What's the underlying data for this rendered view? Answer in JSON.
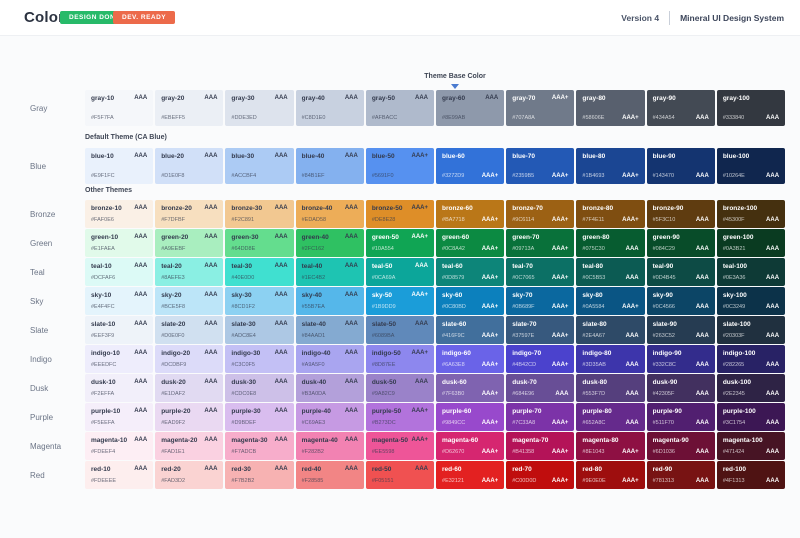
{
  "header": {
    "title": "Color",
    "badges": [
      {
        "label": "DESIGN DONE",
        "color": "#27ba69"
      },
      {
        "label": "DEV. READY",
        "color": "#ec6a4a"
      }
    ],
    "version": "Version 4",
    "product": "Mineral UI Design System"
  },
  "annotations": {
    "theme_base_color": "Theme Base Color",
    "default_theme": "Default Theme (CA Blue)",
    "other_themes": "Other Themes"
  },
  "accent_color": "#3272D9",
  "palette": {
    "rows": [
      {
        "label": "Gray",
        "light_from": 6,
        "swatches": [
          {
            "name": "gray-10",
            "hex": "#F5F7FA",
            "rating": "AAA",
            "rating_pos": "top"
          },
          {
            "name": "gray-20",
            "hex": "#EBEFF5",
            "rating": "AAA",
            "rating_pos": "top"
          },
          {
            "name": "gray-30",
            "hex": "#DDE3ED",
            "rating": "AAA",
            "rating_pos": "top"
          },
          {
            "name": "gray-40",
            "hex": "#C8D1E0",
            "rating": "AAA",
            "rating_pos": "top"
          },
          {
            "name": "gray-50",
            "hex": "#AFBACC",
            "rating": "AAA",
            "rating_pos": "top"
          },
          {
            "name": "gray-60",
            "hex": "#8E99AB",
            "rating": "AAA",
            "rating_pos": "top"
          },
          {
            "name": "gray-70",
            "hex": "#707A8A",
            "rating": "AAA+",
            "rating_pos": "top"
          },
          {
            "name": "gray-80",
            "hex": "#58606E",
            "rating": "AAA+",
            "rating_pos": "bottom"
          },
          {
            "name": "gray-90",
            "hex": "#434A54",
            "rating": "AAA",
            "rating_pos": "bottom"
          },
          {
            "name": "gray-100",
            "hex": "#333840",
            "rating": "AAA",
            "rating_pos": "bottom"
          }
        ]
      },
      {
        "label": "Blue",
        "light_from": 5,
        "swatches": [
          {
            "name": "blue-10",
            "hex": "#E9F1FC",
            "rating": "AAA",
            "rating_pos": "top"
          },
          {
            "name": "blue-20",
            "hex": "#D1E0F8",
            "rating": "AAA",
            "rating_pos": "top"
          },
          {
            "name": "blue-30",
            "hex": "#ACCBF4",
            "rating": "AAA",
            "rating_pos": "top"
          },
          {
            "name": "blue-40",
            "hex": "#84B1EF",
            "rating": "AAA",
            "rating_pos": "top"
          },
          {
            "name": "blue-50",
            "hex": "#5691F0",
            "rating": "AAA+",
            "rating_pos": "top"
          },
          {
            "name": "blue-60",
            "hex": "#3272D9",
            "rating": "AAA+",
            "rating_pos": "bottom"
          },
          {
            "name": "blue-70",
            "hex": "#2359B5",
            "rating": "AAA+",
            "rating_pos": "bottom"
          },
          {
            "name": "blue-80",
            "hex": "#1B4693",
            "rating": "AAA+",
            "rating_pos": "bottom"
          },
          {
            "name": "blue-90",
            "hex": "#143470",
            "rating": "AAA",
            "rating_pos": "bottom"
          },
          {
            "name": "blue-100",
            "hex": "#10264E",
            "rating": "AAA",
            "rating_pos": "bottom"
          }
        ]
      },
      {
        "label": "Bronze",
        "light_from": 5,
        "swatches": [
          {
            "name": "bronze-10",
            "hex": "#FAF0E6",
            "rating": "AAA",
            "rating_pos": "top"
          },
          {
            "name": "bronze-20",
            "hex": "#F7DFBF",
            "rating": "AAA",
            "rating_pos": "top"
          },
          {
            "name": "bronze-30",
            "hex": "#F2C891",
            "rating": "AAA",
            "rating_pos": "top"
          },
          {
            "name": "bronze-40",
            "hex": "#EDAD58",
            "rating": "AAA",
            "rating_pos": "top"
          },
          {
            "name": "bronze-50",
            "hex": "#DE8E28",
            "rating": "AAA+",
            "rating_pos": "top"
          },
          {
            "name": "bronze-60",
            "hex": "#BA7718",
            "rating": "AAA+",
            "rating_pos": "bottom"
          },
          {
            "name": "bronze-70",
            "hex": "#9C6114",
            "rating": "AAA+",
            "rating_pos": "bottom"
          },
          {
            "name": "bronze-80",
            "hex": "#7F4E11",
            "rating": "AAA+",
            "rating_pos": "bottom"
          },
          {
            "name": "bronze-90",
            "hex": "#5F3C10",
            "rating": "AAA",
            "rating_pos": "bottom"
          },
          {
            "name": "bronze-100",
            "hex": "#45300F",
            "rating": "AAA",
            "rating_pos": "bottom"
          }
        ]
      },
      {
        "label": "Green",
        "light_from": 4,
        "swatches": [
          {
            "name": "green-10",
            "hex": "#E1FAEA",
            "rating": "AAA",
            "rating_pos": "top"
          },
          {
            "name": "green-20",
            "hex": "#A9EEBF",
            "rating": "AAA",
            "rating_pos": "top"
          },
          {
            "name": "green-30",
            "hex": "#64DD8E",
            "rating": "AAA",
            "rating_pos": "top"
          },
          {
            "name": "green-40",
            "hex": "#2FC162",
            "rating": "AAA",
            "rating_pos": "top"
          },
          {
            "name": "green-50",
            "hex": "#10A554",
            "rating": "AAA+",
            "rating_pos": "top"
          },
          {
            "name": "green-60",
            "hex": "#0C8A42",
            "rating": "AAA+",
            "rating_pos": "bottom"
          },
          {
            "name": "green-70",
            "hex": "#09713A",
            "rating": "AAA+",
            "rating_pos": "bottom"
          },
          {
            "name": "green-80",
            "hex": "#075C30",
            "rating": "AAA",
            "rating_pos": "bottom"
          },
          {
            "name": "green-90",
            "hex": "#084C29",
            "rating": "AAA",
            "rating_pos": "bottom"
          },
          {
            "name": "green-100",
            "hex": "#0A3B21",
            "rating": "AAA",
            "rating_pos": "bottom"
          }
        ]
      },
      {
        "label": "Teal",
        "light_from": 4,
        "swatches": [
          {
            "name": "teal-10",
            "hex": "#DCFAF6",
            "rating": "AAA",
            "rating_pos": "top"
          },
          {
            "name": "teal-20",
            "hex": "#8AEFE3",
            "rating": "AAA",
            "rating_pos": "top"
          },
          {
            "name": "teal-30",
            "hex": "#40E0D0",
            "rating": "AAA",
            "rating_pos": "top"
          },
          {
            "name": "teal-40",
            "hex": "#1EC4B2",
            "rating": "AAA",
            "rating_pos": "top"
          },
          {
            "name": "teal-50",
            "hex": "#0CA69A",
            "rating": "AAA",
            "rating_pos": "top"
          },
          {
            "name": "teal-60",
            "hex": "#0D8579",
            "rating": "AAA+",
            "rating_pos": "bottom"
          },
          {
            "name": "teal-70",
            "hex": "#0C7065",
            "rating": "AAA+",
            "rating_pos": "bottom"
          },
          {
            "name": "teal-80",
            "hex": "#0C5B53",
            "rating": "AAA",
            "rating_pos": "bottom"
          },
          {
            "name": "teal-90",
            "hex": "#0D4B45",
            "rating": "AAA",
            "rating_pos": "bottom"
          },
          {
            "name": "teal-100",
            "hex": "#0E3A36",
            "rating": "AAA",
            "rating_pos": "bottom"
          }
        ]
      },
      {
        "label": "Sky",
        "light_from": 4,
        "swatches": [
          {
            "name": "sky-10",
            "hex": "#E4F4FC",
            "rating": "AAA",
            "rating_pos": "top"
          },
          {
            "name": "sky-20",
            "hex": "#BCE5F8",
            "rating": "AAA",
            "rating_pos": "top"
          },
          {
            "name": "sky-30",
            "hex": "#8CD1F2",
            "rating": "AAA",
            "rating_pos": "top"
          },
          {
            "name": "sky-40",
            "hex": "#55B7EA",
            "rating": "AAA",
            "rating_pos": "top"
          },
          {
            "name": "sky-50",
            "hex": "#1B9DD9",
            "rating": "AAA+",
            "rating_pos": "top"
          },
          {
            "name": "sky-60",
            "hex": "#0C80BD",
            "rating": "AAA+",
            "rating_pos": "bottom"
          },
          {
            "name": "sky-70",
            "hex": "#0B689F",
            "rating": "AAA+",
            "rating_pos": "bottom"
          },
          {
            "name": "sky-80",
            "hex": "#0A5584",
            "rating": "AAA+",
            "rating_pos": "bottom"
          },
          {
            "name": "sky-90",
            "hex": "#0C4566",
            "rating": "AAA",
            "rating_pos": "bottom"
          },
          {
            "name": "sky-100",
            "hex": "#0C3249",
            "rating": "AAA",
            "rating_pos": "bottom"
          }
        ]
      },
      {
        "label": "Slate",
        "light_from": 5,
        "swatches": [
          {
            "name": "slate-10",
            "hex": "#EEF3F9",
            "rating": "AAA",
            "rating_pos": "top"
          },
          {
            "name": "slate-20",
            "hex": "#D0E0F0",
            "rating": "AAA",
            "rating_pos": "top"
          },
          {
            "name": "slate-30",
            "hex": "#ADC8E4",
            "rating": "AAA",
            "rating_pos": "top"
          },
          {
            "name": "slate-40",
            "hex": "#84AAD1",
            "rating": "AAA",
            "rating_pos": "top"
          },
          {
            "name": "slate-50",
            "hex": "#6089BA",
            "rating": "AAA",
            "rating_pos": "top"
          },
          {
            "name": "slate-60",
            "hex": "#416F9C",
            "rating": "AAA+",
            "rating_pos": "bottom"
          },
          {
            "name": "slate-70",
            "hex": "#37597E",
            "rating": "AAA+",
            "rating_pos": "bottom"
          },
          {
            "name": "slate-80",
            "hex": "#2E4A67",
            "rating": "AAA",
            "rating_pos": "bottom"
          },
          {
            "name": "slate-90",
            "hex": "#263C52",
            "rating": "AAA",
            "rating_pos": "bottom"
          },
          {
            "name": "slate-100",
            "hex": "#20303F",
            "rating": "AAA",
            "rating_pos": "bottom"
          }
        ]
      },
      {
        "label": "Indigo",
        "light_from": 5,
        "swatches": [
          {
            "name": "indigo-10",
            "hex": "#EEEDFC",
            "rating": "AAA",
            "rating_pos": "top"
          },
          {
            "name": "indigo-20",
            "hex": "#DCDBF9",
            "rating": "AAA",
            "rating_pos": "top"
          },
          {
            "name": "indigo-30",
            "hex": "#C3C0F5",
            "rating": "AAA",
            "rating_pos": "top"
          },
          {
            "name": "indigo-40",
            "hex": "#A9A5F0",
            "rating": "AAA",
            "rating_pos": "top"
          },
          {
            "name": "indigo-50",
            "hex": "#8D87EE",
            "rating": "AAA+",
            "rating_pos": "top"
          },
          {
            "name": "indigo-60",
            "hex": "#6A63E8",
            "rating": "AAA+",
            "rating_pos": "bottom"
          },
          {
            "name": "indigo-70",
            "hex": "#4B42CD",
            "rating": "AAA+",
            "rating_pos": "bottom"
          },
          {
            "name": "indigo-80",
            "hex": "#3D35AB",
            "rating": "AAA",
            "rating_pos": "bottom"
          },
          {
            "name": "indigo-90",
            "hex": "#332C8C",
            "rating": "AAA",
            "rating_pos": "bottom"
          },
          {
            "name": "indigo-100",
            "hex": "#282265",
            "rating": "AAA",
            "rating_pos": "bottom"
          }
        ]
      },
      {
        "label": "Dusk",
        "light_from": 5,
        "swatches": [
          {
            "name": "dusk-10",
            "hex": "#F2EFFA",
            "rating": "AAA",
            "rating_pos": "top"
          },
          {
            "name": "dusk-20",
            "hex": "#E1DAF2",
            "rating": "AAA",
            "rating_pos": "top"
          },
          {
            "name": "dusk-30",
            "hex": "#CDC0E8",
            "rating": "AAA",
            "rating_pos": "top"
          },
          {
            "name": "dusk-40",
            "hex": "#B3A0DA",
            "rating": "AAA",
            "rating_pos": "top"
          },
          {
            "name": "dusk-50",
            "hex": "#9A82C9",
            "rating": "AAA",
            "rating_pos": "top"
          },
          {
            "name": "dusk-60",
            "hex": "#7F63B0",
            "rating": "AAA+",
            "rating_pos": "bottom"
          },
          {
            "name": "dusk-70",
            "hex": "#684E96",
            "rating": "AAA",
            "rating_pos": "bottom"
          },
          {
            "name": "dusk-80",
            "hex": "#553F7D",
            "rating": "AAA",
            "rating_pos": "bottom"
          },
          {
            "name": "dusk-90",
            "hex": "#42305F",
            "rating": "AAA",
            "rating_pos": "bottom"
          },
          {
            "name": "dusk-100",
            "hex": "#2E2345",
            "rating": "AAA",
            "rating_pos": "bottom"
          }
        ]
      },
      {
        "label": "Purple",
        "light_from": 5,
        "swatches": [
          {
            "name": "purple-10",
            "hex": "#F5EEFA",
            "rating": "AAA",
            "rating_pos": "top"
          },
          {
            "name": "purple-20",
            "hex": "#EAD9F2",
            "rating": "AAA",
            "rating_pos": "top"
          },
          {
            "name": "purple-30",
            "hex": "#D9BDEF",
            "rating": "AAA",
            "rating_pos": "top"
          },
          {
            "name": "purple-40",
            "hex": "#C69AE3",
            "rating": "AAA",
            "rating_pos": "top"
          },
          {
            "name": "purple-50",
            "hex": "#B273DC",
            "rating": "AAA+",
            "rating_pos": "top"
          },
          {
            "name": "purple-60",
            "hex": "#9849CC",
            "rating": "AAA+",
            "rating_pos": "bottom"
          },
          {
            "name": "purple-70",
            "hex": "#7C33A8",
            "rating": "AAA+",
            "rating_pos": "bottom"
          },
          {
            "name": "purple-80",
            "hex": "#652A8C",
            "rating": "AAA",
            "rating_pos": "bottom"
          },
          {
            "name": "purple-90",
            "hex": "#511F70",
            "rating": "AAA",
            "rating_pos": "bottom"
          },
          {
            "name": "purple-100",
            "hex": "#3C1754",
            "rating": "AAA",
            "rating_pos": "bottom"
          }
        ]
      },
      {
        "label": "Magenta",
        "light_from": 5,
        "swatches": [
          {
            "name": "magenta-10",
            "hex": "#FDEEF4",
            "rating": "AAA",
            "rating_pos": "top"
          },
          {
            "name": "magenta-20",
            "hex": "#FAD1E1",
            "rating": "AAA",
            "rating_pos": "top"
          },
          {
            "name": "magenta-30",
            "hex": "#F7ADCB",
            "rating": "AAA",
            "rating_pos": "top"
          },
          {
            "name": "magenta-40",
            "hex": "#F282B2",
            "rating": "AAA",
            "rating_pos": "top"
          },
          {
            "name": "magenta-50",
            "hex": "#EE5598",
            "rating": "AAA+",
            "rating_pos": "top"
          },
          {
            "name": "magenta-60",
            "hex": "#D62670",
            "rating": "AAA+",
            "rating_pos": "bottom"
          },
          {
            "name": "magenta-70",
            "hex": "#B41358",
            "rating": "AAA+",
            "rating_pos": "bottom"
          },
          {
            "name": "magenta-80",
            "hex": "#8E1043",
            "rating": "AAA+",
            "rating_pos": "bottom"
          },
          {
            "name": "magenta-90",
            "hex": "#6D1036",
            "rating": "AAA",
            "rating_pos": "bottom"
          },
          {
            "name": "magenta-100",
            "hex": "#471424",
            "rating": "AAA",
            "rating_pos": "bottom"
          }
        ]
      },
      {
        "label": "Red",
        "light_from": 5,
        "swatches": [
          {
            "name": "red-10",
            "hex": "#FDEEEE",
            "rating": "AAA",
            "rating_pos": "top"
          },
          {
            "name": "red-20",
            "hex": "#FAD3D2",
            "rating": "AAA",
            "rating_pos": "top"
          },
          {
            "name": "red-30",
            "hex": "#F7B2B2",
            "rating": "AAA",
            "rating_pos": "top"
          },
          {
            "name": "red-40",
            "hex": "#F28585",
            "rating": "AAA",
            "rating_pos": "top"
          },
          {
            "name": "red-50",
            "hex": "#F05151",
            "rating": "AAA",
            "rating_pos": "top"
          },
          {
            "name": "red-60",
            "hex": "#E32121",
            "rating": "AAA+",
            "rating_pos": "bottom"
          },
          {
            "name": "red-70",
            "hex": "#C00D0D",
            "rating": "AAA+",
            "rating_pos": "bottom"
          },
          {
            "name": "red-80",
            "hex": "#9E0E0E",
            "rating": "AAA+",
            "rating_pos": "bottom"
          },
          {
            "name": "red-90",
            "hex": "#781313",
            "rating": "AAA",
            "rating_pos": "bottom"
          },
          {
            "name": "red-100",
            "hex": "#4F1313",
            "rating": "AAA",
            "rating_pos": "bottom"
          }
        ]
      }
    ]
  }
}
